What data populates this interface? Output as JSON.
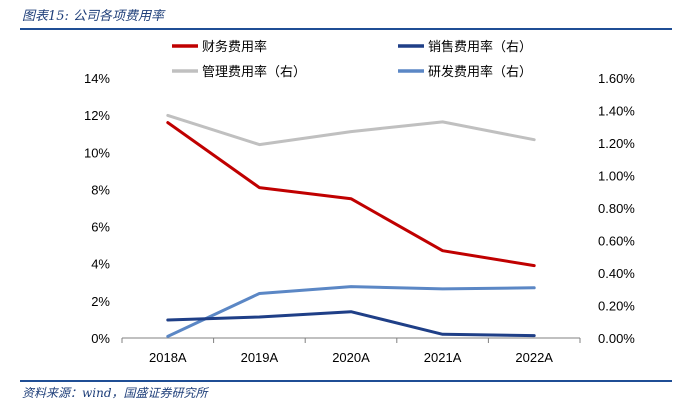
{
  "figure_title": "图表15: 公司各项费用率",
  "source_note": "资料来源：wind，国盛证券研究所",
  "chart_data": {
    "type": "line",
    "categories": [
      "2018A",
      "2019A",
      "2020A",
      "2021A",
      "2022A"
    ],
    "left_axis": {
      "ylim": [
        0,
        0.14
      ],
      "ticks": [
        "0%",
        "2%",
        "4%",
        "6%",
        "8%",
        "10%",
        "12%",
        "14%"
      ]
    },
    "right_axis": {
      "ylim": [
        0,
        0.016
      ],
      "ticks": [
        "0.00%",
        "0.20%",
        "0.40%",
        "0.60%",
        "0.80%",
        "1.00%",
        "1.20%",
        "1.40%",
        "1.60%"
      ]
    },
    "series": [
      {
        "name": "财务费用率",
        "axis": "left",
        "color": "#c00000",
        "values": [
          0.116,
          0.081,
          0.075,
          0.047,
          0.039
        ]
      },
      {
        "name": "销售费用率（右）",
        "axis": "right",
        "color": "#1f3f87",
        "values": [
          0.00111,
          0.00129,
          0.00162,
          0.00023,
          0.00015
        ]
      },
      {
        "name": "管理费用率（右）",
        "axis": "right",
        "color": "#c0c0c0",
        "values": [
          0.0137,
          0.0119,
          0.0127,
          0.0133,
          0.0122
        ]
      },
      {
        "name": "研发费用率（右）",
        "axis": "right",
        "color": "#5b87c5",
        "values": [
          0.0001,
          0.00274,
          0.00316,
          0.00302,
          0.00309
        ]
      }
    ],
    "legend_position": "top",
    "grid": false
  }
}
